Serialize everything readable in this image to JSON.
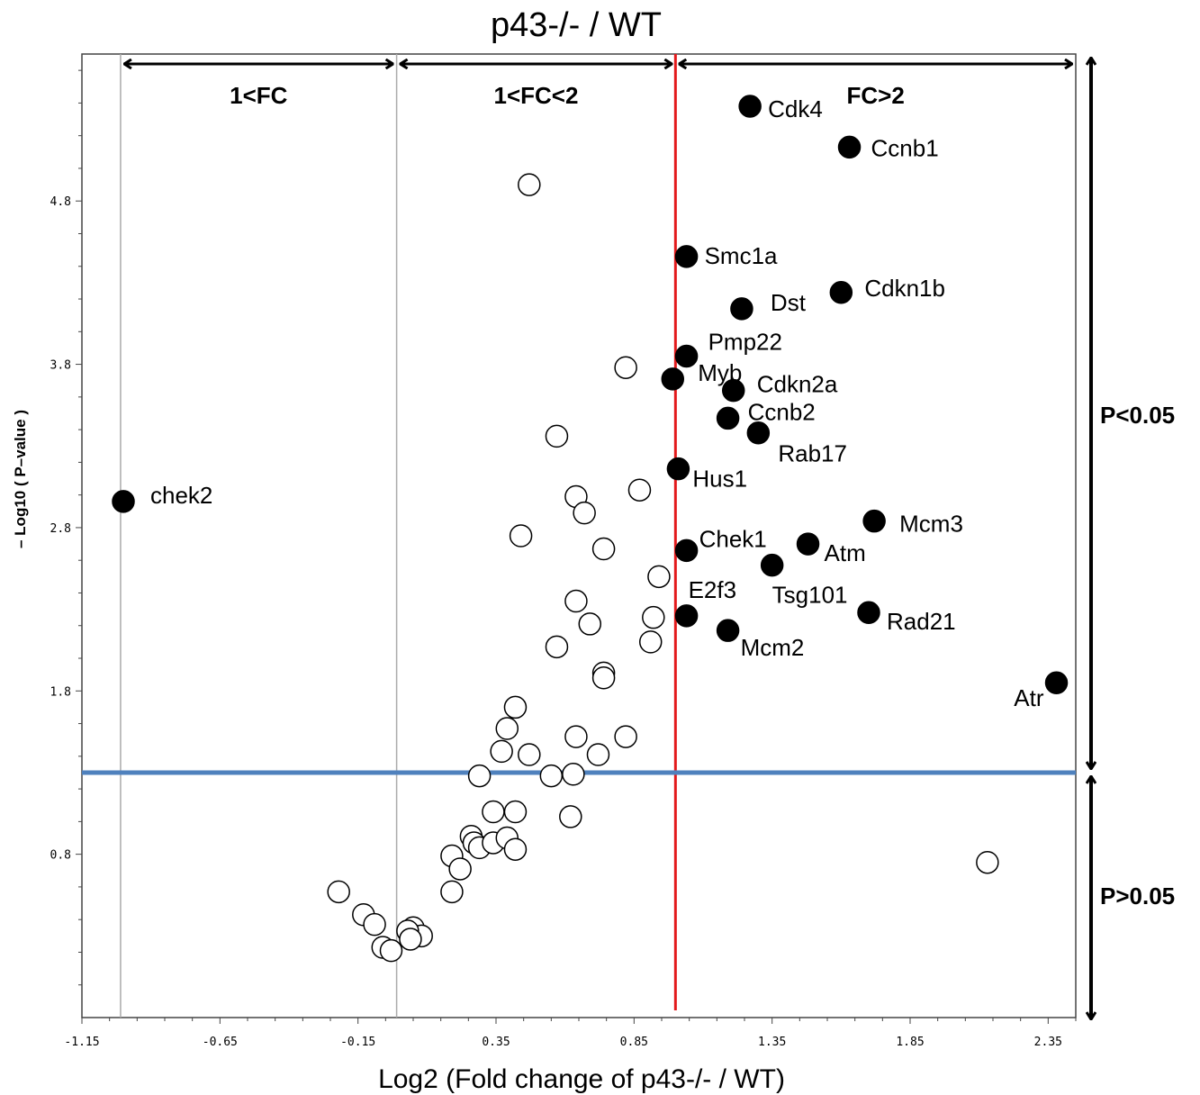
{
  "chart_data": {
    "type": "scatter",
    "title": "p43-/- / WT",
    "xlabel": "Log2 (Fold change of p43-/- / WT)",
    "ylabel": "– Log10 ( P–value )",
    "xlim": [
      -1.15,
      2.45
    ],
    "ylim": [
      -0.2,
      5.7
    ],
    "x_ticks": [
      {
        "value": -1.15,
        "label": "-1.15"
      },
      {
        "value": -0.65,
        "label": "-0.65"
      },
      {
        "value": -0.15,
        "label": "-0.15"
      },
      {
        "value": 0.35,
        "label": "0.35"
      },
      {
        "value": 0.85,
        "label": "0.85"
      },
      {
        "value": 1.35,
        "label": "1.35"
      },
      {
        "value": 1.85,
        "label": "1.85"
      },
      {
        "value": 2.35,
        "label": "2.35"
      }
    ],
    "y_ticks": [
      {
        "value": 0.8,
        "label": "0.8"
      },
      {
        "value": 1.8,
        "label": "1.8"
      },
      {
        "value": 2.8,
        "label": "2.8"
      },
      {
        "value": 3.8,
        "label": "3.8"
      },
      {
        "value": 4.8,
        "label": "4.8"
      }
    ],
    "grid": false,
    "threshold_lines": {
      "significance_y": 1.3,
      "fold_change_x": 1.0,
      "guide_x": [
        -1.01,
        -0.01
      ],
      "colors": {
        "significance": "#4f81bd",
        "fold_change": "#e31a1c",
        "guide": "#aaaaaa"
      }
    },
    "regions": [
      {
        "label": "1<FC",
        "from": -1.01,
        "to": -0.01
      },
      {
        "label": "1<FC<2",
        "from": -0.01,
        "to": 1.0
      },
      {
        "label": "FC>2",
        "from": 1.0,
        "to": 2.45
      }
    ],
    "p_regions": [
      {
        "label": "P<0.05"
      },
      {
        "label": "P>0.05"
      }
    ],
    "series": [
      {
        "name": "labeled",
        "fill": "#000000",
        "points": [
          {
            "x": 1.27,
            "y": 5.38,
            "label": "Cdk4"
          },
          {
            "x": 1.63,
            "y": 5.13,
            "label": "Ccnb1"
          },
          {
            "x": 1.04,
            "y": 4.46,
            "label": "Smc1a"
          },
          {
            "x": 1.6,
            "y": 4.24,
            "label": "Cdkn1b"
          },
          {
            "x": 1.24,
            "y": 4.14,
            "label": "Dst"
          },
          {
            "x": 1.04,
            "y": 3.85,
            "label": "Pmp22"
          },
          {
            "x": 0.99,
            "y": 3.71,
            "label": "Myb"
          },
          {
            "x": 1.21,
            "y": 3.64,
            "label": "Cdkn2a"
          },
          {
            "x": 1.19,
            "y": 3.47,
            "label": "Ccnb2"
          },
          {
            "x": 1.3,
            "y": 3.38,
            "label": "Rab17"
          },
          {
            "x": 1.01,
            "y": 3.16,
            "label": "Hus1"
          },
          {
            "x": -1.0,
            "y": 2.96,
            "label": "chek2"
          },
          {
            "x": 1.72,
            "y": 2.84,
            "label": "Mcm3"
          },
          {
            "x": 1.04,
            "y": 2.66,
            "label": "Chek1"
          },
          {
            "x": 1.48,
            "y": 2.7,
            "label": "Atm"
          },
          {
            "x": 1.35,
            "y": 2.57,
            "label": "Tsg101"
          },
          {
            "x": 1.04,
            "y": 2.26,
            "label": "E2f3"
          },
          {
            "x": 1.7,
            "y": 2.28,
            "label": "Rad21"
          },
          {
            "x": 1.19,
            "y": 2.17,
            "label": "Mcm2"
          },
          {
            "x": 2.38,
            "y": 1.85,
            "label": "Atr"
          }
        ]
      },
      {
        "name": "unlabeled",
        "fill": "#ffffff",
        "points": [
          {
            "x": 0.47,
            "y": 4.9
          },
          {
            "x": 0.82,
            "y": 3.78
          },
          {
            "x": 0.57,
            "y": 3.36
          },
          {
            "x": 0.87,
            "y": 3.03
          },
          {
            "x": 0.64,
            "y": 2.99
          },
          {
            "x": 0.67,
            "y": 2.89
          },
          {
            "x": 0.44,
            "y": 2.75
          },
          {
            "x": 0.74,
            "y": 2.67
          },
          {
            "x": 0.94,
            "y": 2.5
          },
          {
            "x": 0.64,
            "y": 2.35
          },
          {
            "x": 0.92,
            "y": 2.25
          },
          {
            "x": 0.69,
            "y": 2.21
          },
          {
            "x": 0.91,
            "y": 2.1
          },
          {
            "x": 0.57,
            "y": 2.07
          },
          {
            "x": 0.74,
            "y": 1.91
          },
          {
            "x": 0.74,
            "y": 1.88
          },
          {
            "x": 0.42,
            "y": 1.7
          },
          {
            "x": 0.39,
            "y": 1.57
          },
          {
            "x": 0.64,
            "y": 1.52
          },
          {
            "x": 0.82,
            "y": 1.52
          },
          {
            "x": 0.37,
            "y": 1.43
          },
          {
            "x": 0.47,
            "y": 1.41
          },
          {
            "x": 0.72,
            "y": 1.41
          },
          {
            "x": 0.29,
            "y": 1.28
          },
          {
            "x": 0.55,
            "y": 1.28
          },
          {
            "x": 0.63,
            "y": 1.29
          },
          {
            "x": 0.34,
            "y": 1.06
          },
          {
            "x": 0.42,
            "y": 1.06
          },
          {
            "x": 0.62,
            "y": 1.03
          },
          {
            "x": 0.26,
            "y": 0.91
          },
          {
            "x": 0.27,
            "y": 0.87
          },
          {
            "x": 0.29,
            "y": 0.84
          },
          {
            "x": 0.34,
            "y": 0.87
          },
          {
            "x": 0.39,
            "y": 0.9
          },
          {
            "x": 0.42,
            "y": 0.83
          },
          {
            "x": 0.19,
            "y": 0.79
          },
          {
            "x": 0.22,
            "y": 0.71
          },
          {
            "x": 0.19,
            "y": 0.57
          },
          {
            "x": -0.22,
            "y": 0.57
          },
          {
            "x": -0.13,
            "y": 0.43
          },
          {
            "x": -0.09,
            "y": 0.37
          },
          {
            "x": 0.05,
            "y": 0.35
          },
          {
            "x": 0.08,
            "y": 0.3
          },
          {
            "x": 0.03,
            "y": 0.33
          },
          {
            "x": 0.04,
            "y": 0.28
          },
          {
            "x": -0.06,
            "y": 0.23
          },
          {
            "x": -0.03,
            "y": 0.21
          },
          {
            "x": 2.13,
            "y": 0.75
          }
        ]
      }
    ]
  }
}
